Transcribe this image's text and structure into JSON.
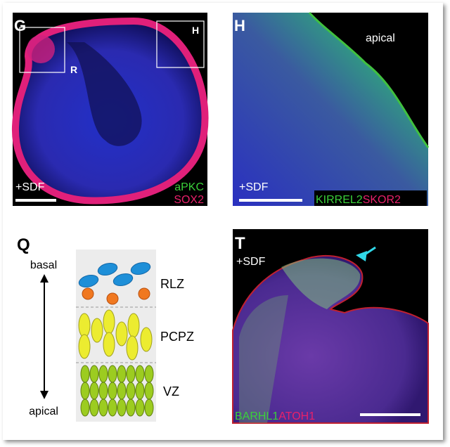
{
  "panels": [
    {
      "letter": "G",
      "box_labels": [
        "R",
        "H"
      ],
      "condition": "+SDF",
      "stains": [
        "aPKC",
        "SOX2"
      ]
    },
    {
      "letter": "H",
      "region": "apical",
      "condition": "+SDF",
      "stains": [
        "KIRREL2",
        "SKOR2"
      ]
    },
    {
      "letter": "Q",
      "axis_top": "basal",
      "axis_bottom": "apical",
      "zones": [
        "RLZ",
        "PCPZ",
        "VZ"
      ]
    },
    {
      "letter": "T",
      "condition": "+SDF",
      "stains": [
        "BARHL1",
        "ATOH1"
      ]
    }
  ]
}
